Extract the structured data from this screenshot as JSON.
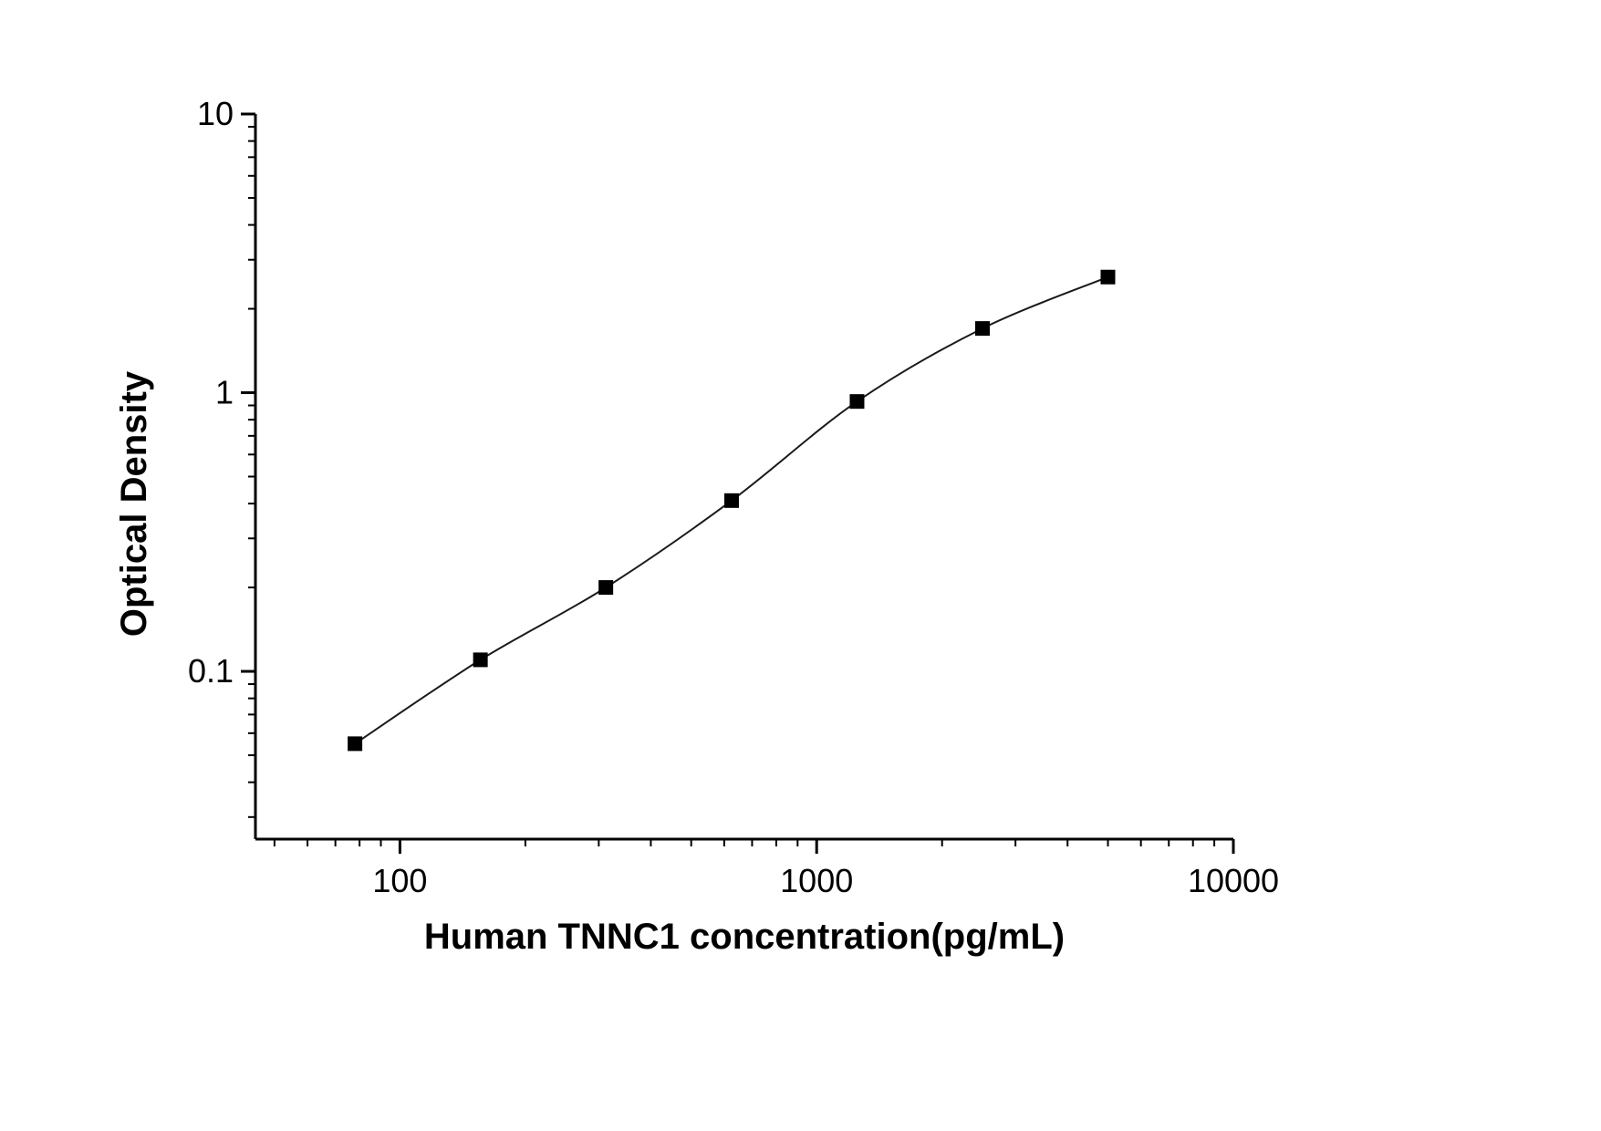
{
  "chart_data": {
    "type": "scatter",
    "title": "",
    "xlabel": "Human TNNC1 concentration(pg/mL)",
    "ylabel": "Optical Density",
    "xscale": "log",
    "yscale": "log",
    "xlim": [
      45,
      10000
    ],
    "ylim": [
      0.025,
      10
    ],
    "x": [
      78,
      156,
      312,
      625,
      1250,
      2500,
      5000
    ],
    "y": [
      0.055,
      0.11,
      0.2,
      0.41,
      0.93,
      1.7,
      2.6
    ],
    "x_major_ticks": [
      100,
      1000,
      10000
    ],
    "x_tick_labels": [
      "100",
      "1000",
      "10000"
    ],
    "y_major_ticks": [
      0.1,
      1,
      10
    ],
    "y_tick_labels": [
      "0.1",
      "1",
      "10"
    ],
    "marker": "filled-square",
    "marker_color": "#000000",
    "line_color": "#1a1a1a",
    "axis_color": "#000000",
    "background_color": "#ffffff",
    "grid": false,
    "legend": null,
    "curve_shape": "4-parameter-logistic"
  }
}
